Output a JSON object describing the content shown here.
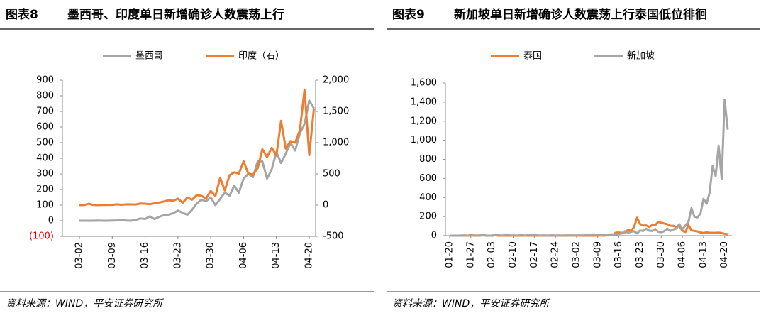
{
  "chart_data": [
    {
      "type": "line",
      "figure_label": "图表8",
      "title": "墨西哥、印度单日新增确诊人数震荡上行",
      "source": "资料来源：WIND，平安证券研究所",
      "categories": [
        "03-02",
        null,
        null,
        null,
        null,
        null,
        null,
        "03-09",
        null,
        null,
        null,
        null,
        null,
        null,
        "03-16",
        null,
        null,
        null,
        null,
        null,
        null,
        "03-23",
        null,
        null,
        null,
        null,
        null,
        null,
        "03-30",
        null,
        null,
        null,
        null,
        null,
        null,
        "04-06",
        null,
        null,
        null,
        null,
        null,
        null,
        "04-13",
        null,
        null,
        null,
        null,
        null,
        null,
        "04-20",
        null
      ],
      "series": [
        {
          "name": "墨西哥",
          "color": "#a5a5a5",
          "axis": "y",
          "values": [
            0,
            0,
            0,
            0,
            1,
            0,
            0,
            1,
            2,
            4,
            1,
            0,
            5,
            15,
            11,
            28,
            11,
            25,
            36,
            39,
            48,
            65,
            51,
            38,
            70,
            110,
            135,
            125,
            150,
            100,
            140,
            180,
            160,
            225,
            180,
            270,
            300,
            280,
            380,
            380,
            270,
            330,
            440,
            370,
            430,
            500,
            450,
            560,
            620,
            770,
            720
          ]
        },
        {
          "name": "印度（右）",
          "color": "#ed7d31",
          "axis": "y2",
          "values": [
            0,
            1,
            22,
            2,
            1,
            3,
            5,
            4,
            12,
            6,
            13,
            11,
            10,
            26,
            23,
            15,
            28,
            42,
            58,
            78,
            69,
            103,
            37,
            122,
            86,
            160,
            149,
            106,
            227,
            146,
            437,
            235,
            478,
            525,
            505,
            704,
            508,
            485,
            591,
            896,
            768,
            918,
            796,
            1350,
            905,
            1025,
            1000,
            1200,
            1850,
            800,
            1550
          ]
        }
      ],
      "ylim": [
        -100,
        900
      ],
      "yticks": [
        {
          "value": -100,
          "label": "(100)"
        },
        0,
        100,
        200,
        300,
        400,
        500,
        600,
        700,
        800,
        900
      ],
      "ytick_negative_color": "#e60000",
      "y2lim": [
        -500,
        2000
      ],
      "y2ticks": [
        -500,
        0,
        500,
        {
          "value": 1000,
          "label": "1,000"
        },
        {
          "value": 1500,
          "label": "1,500"
        },
        {
          "value": 2000,
          "label": "2,000"
        }
      ]
    },
    {
      "type": "line",
      "figure_label": "图表9",
      "title": "新加坡单日新增确诊人数震荡上行泰国低位徘徊",
      "source": "资料来源：WIND，平安证券研究所",
      "categories": [
        "01-20",
        null,
        null,
        null,
        null,
        null,
        null,
        "01-27",
        null,
        null,
        null,
        null,
        null,
        null,
        "02-03",
        null,
        null,
        null,
        null,
        null,
        null,
        "02-10",
        null,
        null,
        null,
        null,
        null,
        null,
        "02-17",
        null,
        null,
        null,
        null,
        null,
        null,
        "02-24",
        null,
        null,
        null,
        null,
        null,
        null,
        "03-02",
        null,
        null,
        null,
        null,
        null,
        null,
        "03-09",
        null,
        null,
        null,
        null,
        null,
        null,
        "03-16",
        null,
        null,
        null,
        null,
        null,
        null,
        "03-23",
        null,
        null,
        null,
        null,
        null,
        null,
        "03-30",
        null,
        null,
        null,
        null,
        null,
        null,
        "04-06",
        null,
        null,
        null,
        null,
        null,
        null,
        "04-13",
        null,
        null,
        null,
        null,
        null,
        null,
        "04-20",
        null
      ],
      "series": [
        {
          "name": "泰国",
          "color": "#ed7d31",
          "axis": "y",
          "values": [
            0,
            0,
            1,
            0,
            0,
            2,
            0,
            6,
            0,
            0,
            0,
            5,
            0,
            0,
            0,
            6,
            0,
            0,
            0,
            1,
            0,
            0,
            0,
            1,
            0,
            0,
            0,
            0,
            0,
            0,
            0,
            0,
            0,
            0,
            0,
            0,
            0,
            0,
            0,
            0,
            2,
            0,
            1,
            1,
            0,
            0,
            1,
            0,
            0,
            0,
            3,
            0,
            5,
            11,
            5,
            32,
            33,
            30,
            35,
            60,
            50,
            89,
            188,
            122,
            106,
            107,
            91,
            111,
            109,
            143,
            136,
            127,
            120,
            104,
            103,
            89,
            102,
            51,
            38,
            111,
            54,
            50,
            45,
            33,
            28,
            34,
            30,
            30,
            29,
            32,
            27,
            19,
            15
          ]
        },
        {
          "name": "新加坡",
          "color": "#a5a5a5",
          "axis": "y",
          "values": [
            0,
            0,
            0,
            1,
            2,
            1,
            0,
            1,
            3,
            1,
            3,
            3,
            2,
            0,
            0,
            6,
            4,
            2,
            3,
            7,
            3,
            2,
            2,
            3,
            5,
            0,
            9,
            3,
            4,
            3,
            1,
            3,
            1,
            2,
            3,
            1,
            2,
            1,
            2,
            3,
            2,
            2,
            2,
            2,
            2,
            5,
            6,
            13,
            12,
            6,
            10,
            12,
            9,
            13,
            13,
            12,
            17,
            23,
            47,
            32,
            40,
            47,
            23,
            54,
            49,
            73,
            52,
            49,
            70,
            42,
            35,
            47,
            74,
            49,
            65,
            75,
            120,
            66,
            106,
            142,
            287,
            198,
            191,
            233,
            386,
            334,
            447,
            728,
            623,
            942,
            596,
            1426,
            1111
          ]
        }
      ],
      "ylim": [
        0,
        1600
      ],
      "yticks": [
        0,
        200,
        400,
        600,
        800,
        {
          "value": 1000,
          "label": "1,000"
        },
        {
          "value": 1200,
          "label": "1,200"
        },
        {
          "value": 1400,
          "label": "1,400"
        },
        {
          "value": 1600,
          "label": "1,600"
        }
      ]
    }
  ]
}
